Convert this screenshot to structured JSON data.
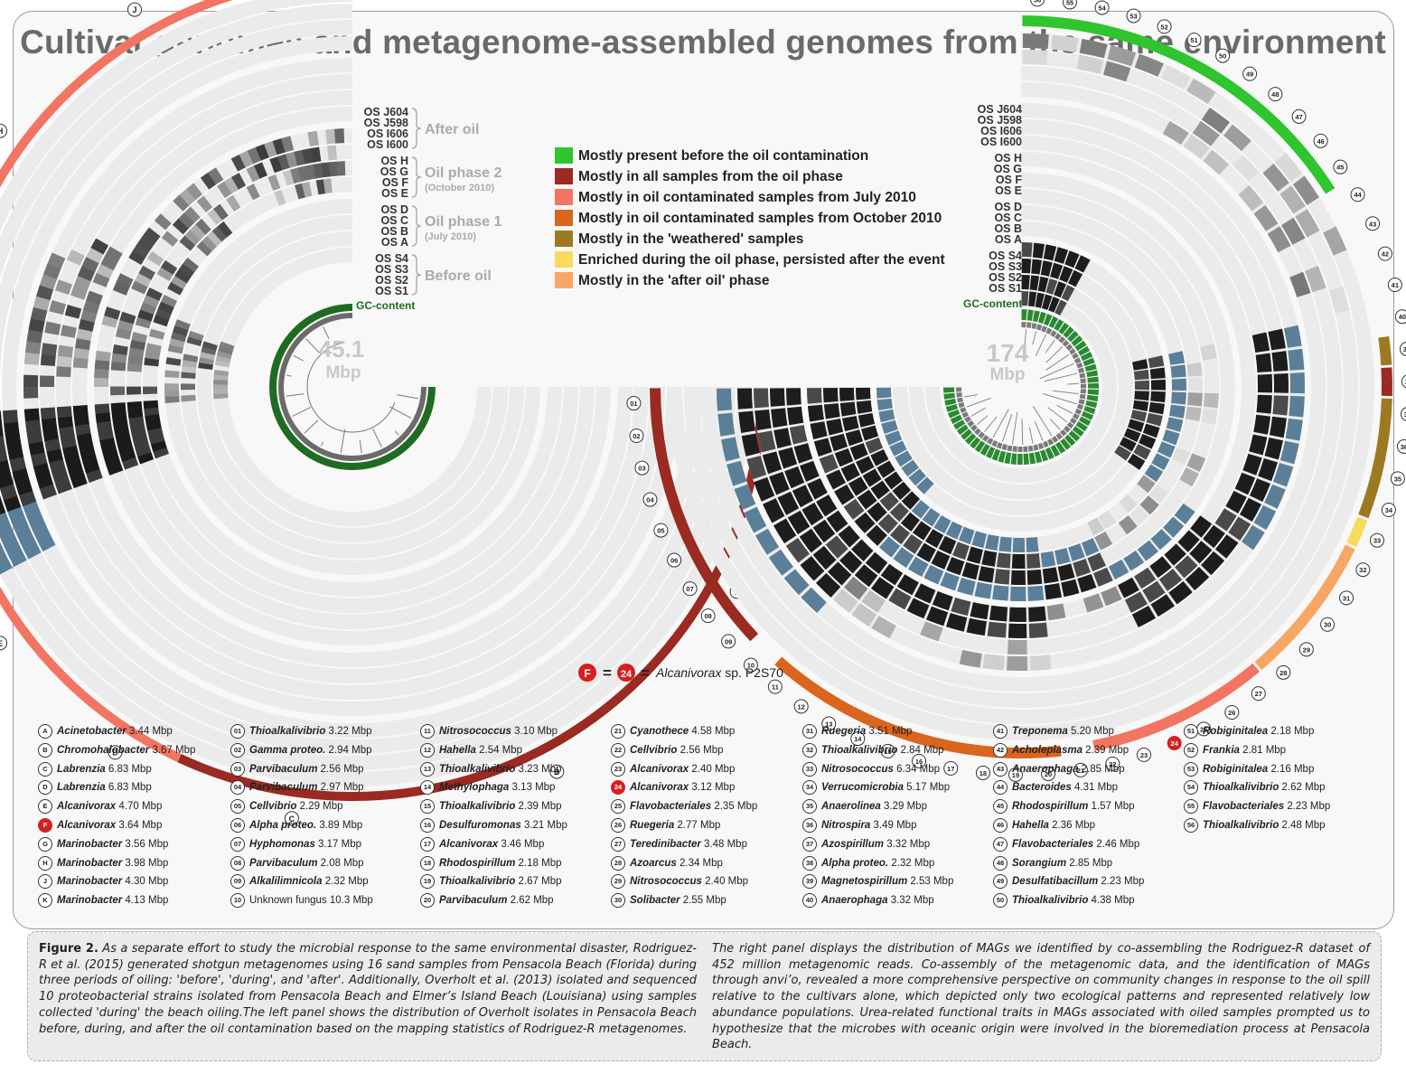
{
  "title": "Cultivar genomes and metagenome-assembled genomes from the same environment",
  "left": {
    "center_value": "45.1",
    "center_unit": "Mbp",
    "sample_labels": [
      "OS J604",
      "OS J598",
      "OS I606",
      "OS I600",
      "OS H",
      "OS G",
      "OS F",
      "OS E",
      "OS D",
      "OS C",
      "OS B",
      "OS A",
      "OS S4",
      "OS S3",
      "OS S2",
      "OS S1"
    ],
    "groups": [
      {
        "label": "After oil",
        "sub": ""
      },
      {
        "label": "Oil phase 2",
        "sub": "(October 2010)"
      },
      {
        "label": "Oil phase 1",
        "sub": "(July 2010)"
      },
      {
        "label": "Before oil",
        "sub": ""
      }
    ],
    "gc_label": "GC-content",
    "isolate_ids": [
      "A",
      "B",
      "C",
      "D",
      "E",
      "F",
      "G",
      "H",
      "J",
      "K"
    ]
  },
  "right": {
    "center_value": "174",
    "center_unit": "Mbp",
    "sample_labels": [
      "OS J604",
      "OS J598",
      "OS I606",
      "OS I600",
      "OS H",
      "OS G",
      "OS F",
      "OS E",
      "OS D",
      "OS C",
      "OS B",
      "OS A",
      "OS S4",
      "OS S3",
      "OS S2",
      "OS S1"
    ],
    "gc_label": "GC-content",
    "mag_ids": [
      "01",
      "02",
      "03",
      "04",
      "05",
      "06",
      "07",
      "08",
      "09",
      "10",
      "11",
      "12",
      "13",
      "14",
      "15",
      "16",
      "17",
      "18",
      "19",
      "20",
      "21",
      "22",
      "23",
      "24",
      "25",
      "26",
      "27",
      "28",
      "29",
      "30",
      "31",
      "32",
      "33",
      "34",
      "35",
      "36",
      "37",
      "38",
      "39",
      "40",
      "41",
      "42",
      "43",
      "44",
      "45",
      "46",
      "47",
      "48",
      "49",
      "50",
      "51",
      "52",
      "53",
      "54",
      "55",
      "56"
    ]
  },
  "category_legend": [
    {
      "label": "Mostly present before the oil contamination",
      "color": "#2ec52e"
    },
    {
      "label": "Mostly in all samples from the oil phase",
      "color": "#9b2a22"
    },
    {
      "label": "Mostly in oil contaminated samples from July 2010",
      "color": "#f27563"
    },
    {
      "label": "Mostly in oil contaminated samples from October 2010",
      "color": "#d9651f"
    },
    {
      "label": "Mostly in the 'weathered' samples",
      "color": "#9c7a22"
    },
    {
      "label": "Enriched during the oil phase, persisted after the event",
      "color": "#f7da5e"
    },
    {
      "label": "Mostly in the 'after oil' phase",
      "color": "#f7a765"
    }
  ],
  "equivalence": {
    "left_id": "F",
    "right_id": "24",
    "text": "Alcanivorax",
    "suffix": " sp. P2S70"
  },
  "genome_list": [
    {
      "id": "A",
      "name": "Acinetobacter",
      "size": "3.44 Mbp"
    },
    {
      "id": "B",
      "name": "Chromohalobacter",
      "size": "3.67 Mbp"
    },
    {
      "id": "C",
      "name": "Labrenzia",
      "size": "6.83 Mbp"
    },
    {
      "id": "D",
      "name": "Labrenzia",
      "size": "6.83 Mbp"
    },
    {
      "id": "E",
      "name": "Alcanivorax",
      "size": "4.70 Mbp"
    },
    {
      "id": "F",
      "name": "Alcanivorax",
      "size": "3.64 Mbp",
      "highlight": true
    },
    {
      "id": "G",
      "name": "Marinobacter",
      "size": "3.56 Mbp"
    },
    {
      "id": "H",
      "name": "Marinobacter",
      "size": "3.98 Mbp"
    },
    {
      "id": "J",
      "name": "Marinobacter",
      "size": "4.30 Mbp"
    },
    {
      "id": "K",
      "name": "Marinobacter",
      "size": "4.13 Mbp"
    },
    {
      "id": "01",
      "name": "Thioalkalivibrio",
      "size": "3.22 Mbp"
    },
    {
      "id": "02",
      "name": "Gamma proteo.",
      "size": "2.94 Mbp"
    },
    {
      "id": "03",
      "name": "Parvibaculum",
      "size": "2.56 Mbp"
    },
    {
      "id": "04",
      "name": "Parvibaculum",
      "size": "2.97 Mbp"
    },
    {
      "id": "05",
      "name": "Cellvibrio",
      "size": "2.29 Mbp"
    },
    {
      "id": "06",
      "name": "Alpha proteo.",
      "size": "3.89 Mbp"
    },
    {
      "id": "07",
      "name": "Hyphomonas",
      "size": "3.17 Mbp"
    },
    {
      "id": "08",
      "name": "Parvibaculum",
      "size": "2.08 Mbp"
    },
    {
      "id": "09",
      "name": "Alkalilimnicola",
      "size": "2.32 Mbp"
    },
    {
      "id": "10",
      "name": "Unknown fungus",
      "size": "10.3 Mbp",
      "plain": true
    },
    {
      "id": "11",
      "name": "Nitrosococcus",
      "size": "3.10 Mbp"
    },
    {
      "id": "12",
      "name": "Hahella",
      "size": "2.54 Mbp"
    },
    {
      "id": "13",
      "name": "Thioalkalivibrio",
      "size": "3.23 Mbp"
    },
    {
      "id": "14",
      "name": "Methylophaga",
      "size": "3.13 Mbp"
    },
    {
      "id": "15",
      "name": "Thioalkalivibrio",
      "size": "2.39 Mbp"
    },
    {
      "id": "16",
      "name": "Desulfuromonas",
      "size": "3.21 Mbp"
    },
    {
      "id": "17",
      "name": "Alcanivorax",
      "size": "3.46 Mbp"
    },
    {
      "id": "18",
      "name": "Rhodospirillum",
      "size": "2.18 Mbp"
    },
    {
      "id": "19",
      "name": "Thioalkalivibrio",
      "size": "2.67 Mbp"
    },
    {
      "id": "20",
      "name": "Parvibaculum",
      "size": "2.62 Mbp"
    },
    {
      "id": "21",
      "name": "Cyanothece",
      "size": "4.58 Mbp"
    },
    {
      "id": "22",
      "name": "Cellvibrio",
      "size": "2.56 Mbp"
    },
    {
      "id": "23",
      "name": "Alcanivorax",
      "size": "2.40 Mbp"
    },
    {
      "id": "24",
      "name": "Alcanivorax",
      "size": "3.12 Mbp",
      "highlight": true
    },
    {
      "id": "25",
      "name": "Flavobacteriales",
      "size": "2.35 Mbp"
    },
    {
      "id": "26",
      "name": "Ruegeria",
      "size": "2.77 Mbp"
    },
    {
      "id": "27",
      "name": "Teredinibacter",
      "size": "3.48 Mbp"
    },
    {
      "id": "28",
      "name": "Azoarcus",
      "size": "2.34 Mbp"
    },
    {
      "id": "29",
      "name": "Nitrosococcus",
      "size": "2.40 Mbp"
    },
    {
      "id": "30",
      "name": "Solibacter",
      "size": "2.55 Mbp"
    },
    {
      "id": "31",
      "name": "Ruegeria",
      "size": "3.51 Mbp"
    },
    {
      "id": "32",
      "name": "Thioalkalivibrio",
      "size": "2.84 Mbp"
    },
    {
      "id": "33",
      "name": "Nitrosococcus",
      "size": "6.34 Mbp"
    },
    {
      "id": "34",
      "name": "Verrucomicrobia",
      "size": "5.17 Mbp"
    },
    {
      "id": "35",
      "name": "Anaerolinea",
      "size": "3.29 Mbp"
    },
    {
      "id": "36",
      "name": "Nitrospira",
      "size": "3.49 Mbp"
    },
    {
      "id": "37",
      "name": "Azospirillum",
      "size": "3.32 Mbp"
    },
    {
      "id": "38",
      "name": "Alpha proteo.",
      "size": "2.32 Mbp"
    },
    {
      "id": "39",
      "name": "Magnetospirillum",
      "size": "2.53 Mbp"
    },
    {
      "id": "40",
      "name": "Anaerophaga",
      "size": "3.32 Mbp"
    },
    {
      "id": "41",
      "name": "Treponema",
      "size": "5.20 Mbp"
    },
    {
      "id": "42",
      "name": "Acholeplasma",
      "size": "2.39 Mbp"
    },
    {
      "id": "43",
      "name": "Anaerophaga",
      "size": "2.85 Mbp"
    },
    {
      "id": "44",
      "name": "Bacteroides",
      "size": "4.31 Mbp"
    },
    {
      "id": "45",
      "name": "Rhodospirillum",
      "size": "1.57 Mbp"
    },
    {
      "id": "46",
      "name": "Hahella",
      "size": "2.36 Mbp"
    },
    {
      "id": "47",
      "name": "Flavobacteriales",
      "size": "2.46 Mbp"
    },
    {
      "id": "48",
      "name": "Sorangium",
      "size": "2.85 Mbp"
    },
    {
      "id": "49",
      "name": "Desulfatibacillum",
      "size": "2.23 Mbp"
    },
    {
      "id": "50",
      "name": "Thioalkalivibrio",
      "size": "4.38 Mbp"
    },
    {
      "id": "51",
      "name": "Robiginitalea",
      "size": "2.18 Mbp"
    },
    {
      "id": "52",
      "name": "Frankia",
      "size": "2.81 Mbp"
    },
    {
      "id": "53",
      "name": "Robiginitalea",
      "size": "2.16 Mbp"
    },
    {
      "id": "54",
      "name": "Thioalkalivibrio",
      "size": "2.62 Mbp"
    },
    {
      "id": "55",
      "name": "Flavobacteriales",
      "size": "2.23 Mbp"
    },
    {
      "id": "56",
      "name": "Thioalkalivibrio",
      "size": "2.48 Mbp"
    }
  ],
  "caption": {
    "label": "Figure 2.",
    "left_text": " As a separate effort to study the microbial response to the same environmental disaster, Rodriguez-R et al. (2015) generated shotgun metagenomes using 16 sand samples from Pensacola Beach (Florida) during three periods of oiling: 'before', 'during', and 'after'. Additionally, Overholt et al. (2013) isolated and sequenced 10 proteobacterial strains isolated from Pensacola Beach and Elmer’s Island Beach (Louisiana) using samples collected 'during' the beach oiling.The left panel shows the distribution of Overholt isolates in Pensacola Beach before, during, and after the oil contamination based on the mapping statistics of Rodriguez-R metagenomes.",
    "right_text": "The right panel displays the distribution of MAGs we identified by co-assembling the Rodriguez-R dataset of 452 million metagenomic reads. Co-assembly of the metagenomic data, and the identification of MAGs through anvi’o, revealed a more comprehensive perspective on community changes in response to the oil spill relative to the cultivars alone, which depicted only two ecological patterns and represented relatively low abundance populations. Urea-related functional traits in MAGs associated with oiled samples prompted us to hypothesize that the microbes with oceanic origin were involved in the bioremediation process at Pensacola Beach."
  }
}
